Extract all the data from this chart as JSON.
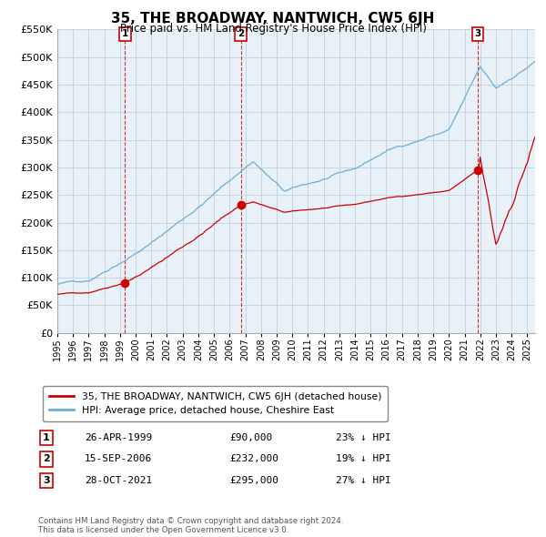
{
  "title": "35, THE BROADWAY, NANTWICH, CW5 6JH",
  "subtitle": "Price paid vs. HM Land Registry's House Price Index (HPI)",
  "ylim": [
    0,
    550000
  ],
  "yticks": [
    0,
    50000,
    100000,
    150000,
    200000,
    250000,
    300000,
    350000,
    400000,
    450000,
    500000,
    550000
  ],
  "background_color": "#ffffff",
  "chart_bg_color": "#e8f0f8",
  "grid_color": "#c8d4e0",
  "sale_color": "#cc0000",
  "hpi_color": "#6baed6",
  "sales": [
    {
      "date_num": 1999.32,
      "price": 90000,
      "label": "1"
    },
    {
      "date_num": 2006.71,
      "price": 232000,
      "label": "2"
    },
    {
      "date_num": 2021.83,
      "price": 295000,
      "label": "3"
    }
  ],
  "sale_labels_info": [
    {
      "num": "1",
      "date": "26-APR-1999",
      "price": "£90,000",
      "note": "23% ↓ HPI"
    },
    {
      "num": "2",
      "date": "15-SEP-2006",
      "price": "£232,000",
      "note": "19% ↓ HPI"
    },
    {
      "num": "3",
      "date": "28-OCT-2021",
      "price": "£295,000",
      "note": "27% ↓ HPI"
    }
  ],
  "legend_label_red": "35, THE BROADWAY, NANTWICH, CW5 6JH (detached house)",
  "legend_label_blue": "HPI: Average price, detached house, Cheshire East",
  "footer": "Contains HM Land Registry data © Crown copyright and database right 2024.\nThis data is licensed under the Open Government Licence v3.0.",
  "xmin": 1995.0,
  "xmax": 2025.5
}
